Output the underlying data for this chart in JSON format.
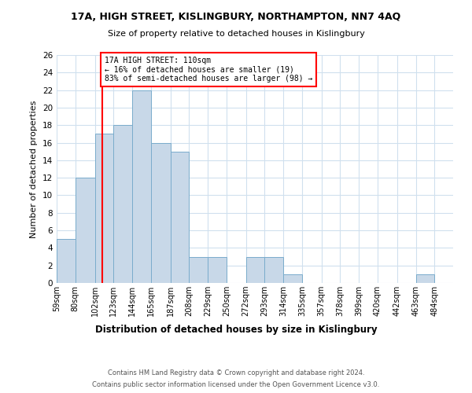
{
  "title1": "17A, HIGH STREET, KISLINGBURY, NORTHAMPTON, NN7 4AQ",
  "title2": "Size of property relative to detached houses in Kislingbury",
  "xlabel": "Distribution of detached houses by size in Kislingbury",
  "ylabel": "Number of detached properties",
  "bins": [
    59,
    80,
    102,
    123,
    144,
    165,
    187,
    208,
    229,
    250,
    272,
    293,
    314,
    335,
    357,
    378,
    399,
    420,
    442,
    463,
    484
  ],
  "counts": [
    5,
    12,
    17,
    18,
    22,
    16,
    15,
    3,
    3,
    0,
    3,
    3,
    1,
    0,
    0,
    0,
    0,
    0,
    0,
    1
  ],
  "bar_color": "#c8d8e8",
  "bar_edge_color": "#7aaccc",
  "property_line_x": 110,
  "property_line_color": "red",
  "annotation_text": "17A HIGH STREET: 110sqm\n← 16% of detached houses are smaller (19)\n83% of semi-detached houses are larger (98) →",
  "annotation_box_color": "white",
  "annotation_box_edge": "red",
  "ylim": [
    0,
    26
  ],
  "yticks": [
    0,
    2,
    4,
    6,
    8,
    10,
    12,
    14,
    16,
    18,
    20,
    22,
    24,
    26
  ],
  "tick_labels": [
    "59sqm",
    "80sqm",
    "102sqm",
    "123sqm",
    "144sqm",
    "165sqm",
    "187sqm",
    "208sqm",
    "229sqm",
    "250sqm",
    "272sqm",
    "293sqm",
    "314sqm",
    "335sqm",
    "357sqm",
    "378sqm",
    "399sqm",
    "420sqm",
    "442sqm",
    "463sqm",
    "484sqm"
  ],
  "footer1": "Contains HM Land Registry data © Crown copyright and database right 2024.",
  "footer2": "Contains public sector information licensed under the Open Government Licence v3.0.",
  "background_color": "#ffffff",
  "grid_color": "#d0e0ee"
}
